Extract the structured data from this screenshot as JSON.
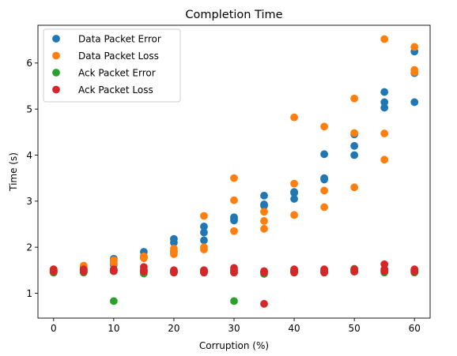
{
  "chart_data": {
    "type": "scatter",
    "title": "Completion Time",
    "xlabel": "Corruption (%)",
    "ylabel": "Time (s)",
    "xlim": [
      -2.6,
      62.6
    ],
    "ylim": [
      0.46,
      6.82
    ],
    "xticks": [
      0,
      10,
      20,
      30,
      40,
      50,
      60
    ],
    "yticks": [
      1,
      2,
      3,
      4,
      5,
      6
    ],
    "grid": false,
    "legend_position": "top-left",
    "series": [
      {
        "name": "Data Packet Error",
        "color": "#1f77b4",
        "points": [
          [
            0,
            1.45
          ],
          [
            0,
            1.48
          ],
          [
            0,
            1.5
          ],
          [
            5,
            1.47
          ],
          [
            5,
            1.5
          ],
          [
            5,
            1.52
          ],
          [
            10,
            1.62
          ],
          [
            10,
            1.7
          ],
          [
            10,
            1.75
          ],
          [
            15,
            1.78
          ],
          [
            15,
            1.8
          ],
          [
            15,
            1.9
          ],
          [
            20,
            1.9
          ],
          [
            20,
            2.1
          ],
          [
            20,
            2.18
          ],
          [
            25,
            2.15
          ],
          [
            25,
            2.32
          ],
          [
            25,
            2.45
          ],
          [
            30,
            2.58
          ],
          [
            30,
            2.62
          ],
          [
            30,
            2.65
          ],
          [
            35,
            2.9
          ],
          [
            35,
            2.93
          ],
          [
            35,
            3.12
          ],
          [
            40,
            3.05
          ],
          [
            40,
            3.18
          ],
          [
            40,
            3.2
          ],
          [
            45,
            3.47
          ],
          [
            45,
            3.5
          ],
          [
            45,
            4.02
          ],
          [
            50,
            4.0
          ],
          [
            50,
            4.2
          ],
          [
            50,
            4.45
          ],
          [
            55,
            5.03
          ],
          [
            55,
            5.15
          ],
          [
            55,
            5.37
          ],
          [
            60,
            5.15
          ],
          [
            60,
            5.78
          ],
          [
            60,
            6.25
          ]
        ]
      },
      {
        "name": "Data Packet Loss",
        "color": "#ff7f0e",
        "points": [
          [
            0,
            1.47
          ],
          [
            0,
            1.5
          ],
          [
            0,
            1.52
          ],
          [
            5,
            1.55
          ],
          [
            5,
            1.58
          ],
          [
            5,
            1.6
          ],
          [
            10,
            1.65
          ],
          [
            10,
            1.7
          ],
          [
            10,
            1.72
          ],
          [
            15,
            1.76
          ],
          [
            15,
            1.78
          ],
          [
            15,
            1.8
          ],
          [
            20,
            1.85
          ],
          [
            20,
            1.92
          ],
          [
            20,
            1.97
          ],
          [
            25,
            1.95
          ],
          [
            25,
            2.0
          ],
          [
            25,
            2.68
          ],
          [
            30,
            2.35
          ],
          [
            30,
            3.02
          ],
          [
            30,
            3.5
          ],
          [
            35,
            2.4
          ],
          [
            35,
            2.57
          ],
          [
            35,
            2.77
          ],
          [
            40,
            2.7
          ],
          [
            40,
            3.38
          ],
          [
            40,
            4.82
          ],
          [
            45,
            2.87
          ],
          [
            45,
            3.23
          ],
          [
            45,
            4.62
          ],
          [
            50,
            3.3
          ],
          [
            50,
            4.48
          ],
          [
            50,
            5.23
          ],
          [
            55,
            3.9
          ],
          [
            55,
            4.47
          ],
          [
            55,
            6.52
          ],
          [
            60,
            5.8
          ],
          [
            60,
            5.85
          ],
          [
            60,
            6.35
          ]
        ]
      },
      {
        "name": "Ack Packet Error",
        "color": "#2ca02c",
        "points": [
          [
            0,
            1.45
          ],
          [
            0,
            1.47
          ],
          [
            0,
            1.5
          ],
          [
            5,
            1.45
          ],
          [
            5,
            1.48
          ],
          [
            5,
            1.5
          ],
          [
            10,
            0.83
          ],
          [
            10,
            1.48
          ],
          [
            10,
            1.5
          ],
          [
            15,
            1.43
          ],
          [
            15,
            1.47
          ],
          [
            15,
            1.5
          ],
          [
            20,
            1.45
          ],
          [
            20,
            1.47
          ],
          [
            20,
            1.48
          ],
          [
            25,
            1.45
          ],
          [
            25,
            1.48
          ],
          [
            25,
            1.5
          ],
          [
            30,
            0.83
          ],
          [
            30,
            1.45
          ],
          [
            30,
            1.5
          ],
          [
            35,
            1.42
          ],
          [
            35,
            1.45
          ],
          [
            35,
            1.47
          ],
          [
            40,
            1.45
          ],
          [
            40,
            1.48
          ],
          [
            40,
            1.5
          ],
          [
            45,
            1.45
          ],
          [
            45,
            1.48
          ],
          [
            45,
            1.5
          ],
          [
            50,
            1.47
          ],
          [
            50,
            1.5
          ],
          [
            50,
            1.53
          ],
          [
            55,
            1.45
          ],
          [
            55,
            1.48
          ],
          [
            55,
            1.5
          ],
          [
            60,
            1.45
          ],
          [
            60,
            1.48
          ],
          [
            60,
            1.5
          ]
        ]
      },
      {
        "name": "Ack Packet Loss",
        "color": "#d62728",
        "points": [
          [
            0,
            1.47
          ],
          [
            0,
            1.5
          ],
          [
            0,
            1.52
          ],
          [
            5,
            1.47
          ],
          [
            5,
            1.5
          ],
          [
            5,
            1.52
          ],
          [
            10,
            1.48
          ],
          [
            10,
            1.5
          ],
          [
            10,
            1.52
          ],
          [
            15,
            1.47
          ],
          [
            15,
            1.5
          ],
          [
            15,
            1.57
          ],
          [
            20,
            1.45
          ],
          [
            20,
            1.47
          ],
          [
            20,
            1.5
          ],
          [
            25,
            1.45
          ],
          [
            25,
            1.48
          ],
          [
            25,
            1.5
          ],
          [
            30,
            1.45
          ],
          [
            30,
            1.5
          ],
          [
            30,
            1.55
          ],
          [
            35,
            0.77
          ],
          [
            35,
            1.45
          ],
          [
            35,
            1.48
          ],
          [
            40,
            1.45
          ],
          [
            40,
            1.48
          ],
          [
            40,
            1.52
          ],
          [
            45,
            1.45
          ],
          [
            45,
            1.48
          ],
          [
            45,
            1.52
          ],
          [
            50,
            1.47
          ],
          [
            50,
            1.5
          ],
          [
            50,
            1.52
          ],
          [
            55,
            1.48
          ],
          [
            55,
            1.52
          ],
          [
            55,
            1.63
          ],
          [
            60,
            1.47
          ],
          [
            60,
            1.5
          ],
          [
            60,
            1.52
          ]
        ]
      }
    ]
  }
}
